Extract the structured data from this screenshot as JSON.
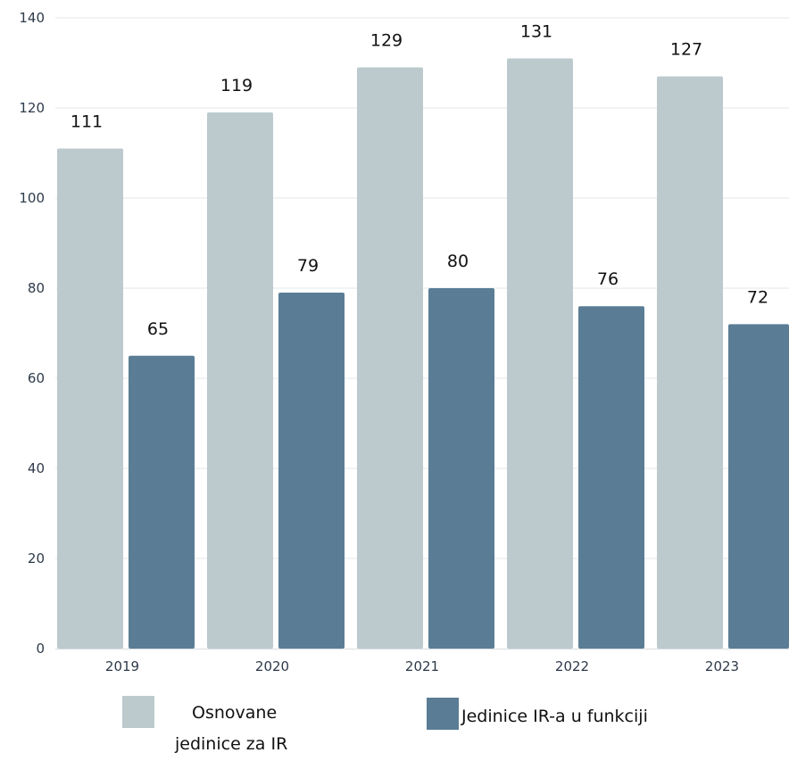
{
  "chart_data": {
    "type": "bar",
    "categories": [
      "2019",
      "2020",
      "2021",
      "2022",
      "2023"
    ],
    "series": [
      {
        "name": "Osnovane jedinice za IR",
        "name_lines": [
          "Osnovane",
          "jedinice za IR"
        ],
        "color": "#bccacd",
        "values": [
          111,
          119,
          129,
          131,
          127
        ]
      },
      {
        "name": "Jedinice IR-a u funkciji",
        "name_lines": [
          "Jedinice IR-a u funkciji"
        ],
        "color": "#5a7d95",
        "values": [
          65,
          79,
          80,
          76,
          72
        ]
      }
    ],
    "ylim": [
      0,
      140
    ],
    "yticks": [
      0,
      20,
      40,
      60,
      80,
      100,
      120,
      140
    ],
    "grid": true,
    "legend": "bottom"
  }
}
